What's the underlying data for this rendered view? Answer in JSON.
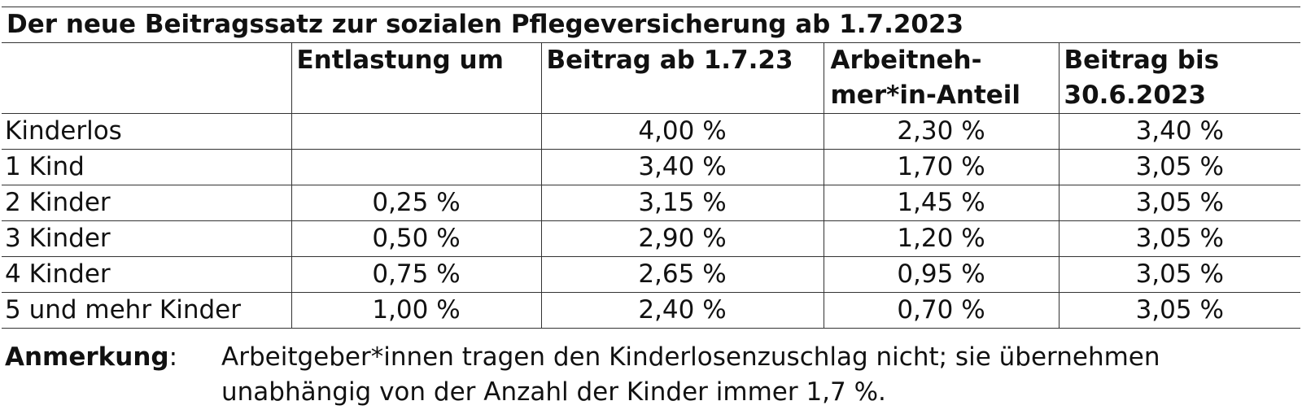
{
  "table": {
    "title": "Der neue Beitragssatz zur sozialen Pflegeversicherung ab 1.7.2023",
    "columns": [
      "",
      "Entlastung um",
      "Beitrag ab 1.7.23",
      "Arbeitneh-­mer*in-Anteil",
      "Beitrag bis 30.6.2023"
    ],
    "headers": {
      "c1": "Entlastung um",
      "c2": "Beitrag ab 1.7.23",
      "c3a": "Arbeitneh-",
      "c3b": "mer*in-Anteil",
      "c4a": "Beitrag bis",
      "c4b": "30.6.2023"
    },
    "rows": [
      {
        "label": "Kinderlos",
        "entlastung": "",
        "beitrag_neu": "4,00 %",
        "anteil": "2,30 %",
        "beitrag_alt": "3,40 %"
      },
      {
        "label": "1 Kind",
        "entlastung": "",
        "beitrag_neu": "3,40 %",
        "anteil": "1,70 %",
        "beitrag_alt": "3,05 %"
      },
      {
        "label": "2 Kinder",
        "entlastung": "0,25 %",
        "beitrag_neu": "3,15 %",
        "anteil": "1,45 %",
        "beitrag_alt": "3,05 %"
      },
      {
        "label": "3 Kinder",
        "entlastung": "0,50 %",
        "beitrag_neu": "2,90 %",
        "anteil": "1,20 %",
        "beitrag_alt": "3,05 %"
      },
      {
        "label": "4 Kinder",
        "entlastung": "0,75 %",
        "beitrag_neu": "2,65 %",
        "anteil": "0,95 %",
        "beitrag_alt": "3,05 %"
      },
      {
        "label": "5 und mehr Kinder",
        "entlastung": "1,00 %",
        "beitrag_neu": "2,40 %",
        "anteil": "0,70 %",
        "beitrag_alt": "3,05 %"
      }
    ]
  },
  "note": {
    "label": "Anmerkung",
    "colon": ":",
    "line1": "Arbeitgeber*innen tragen den Kinderlosenzuschlag nicht; sie übernehmen",
    "line2": "unabhängig von der Anzahl der Kinder immer 1,7 %."
  }
}
